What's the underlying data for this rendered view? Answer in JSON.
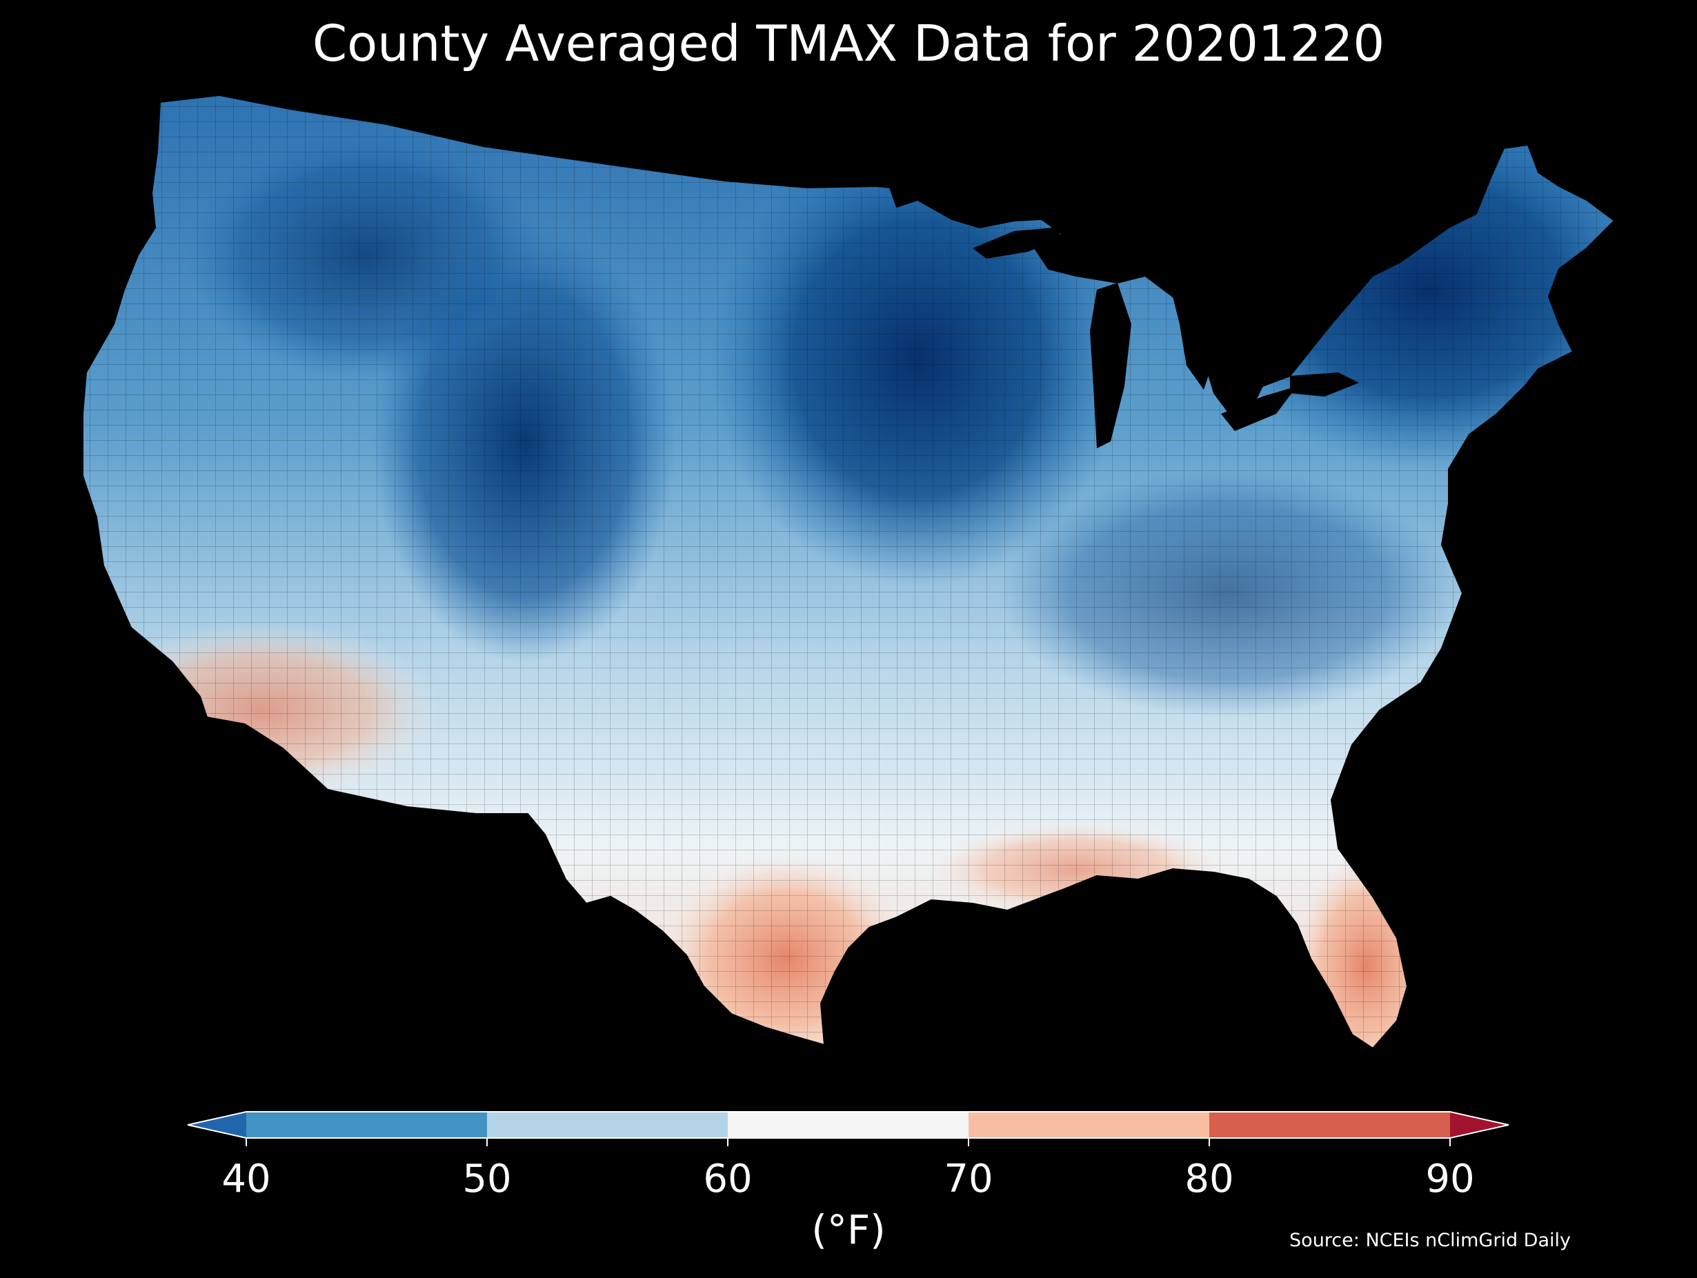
{
  "title": "County Averaged TMAX Data for 20201220",
  "colorbar": {
    "unit_label": "(°F)",
    "ticks": [
      "40",
      "50",
      "60",
      "70",
      "80",
      "90"
    ],
    "bins": [
      {
        "from": null,
        "to": 40,
        "color": "#2166ac"
      },
      {
        "from": 40,
        "to": 50,
        "color": "#4393c3"
      },
      {
        "from": 50,
        "to": 60,
        "color": "#b3d4e7"
      },
      {
        "from": 60,
        "to": 70,
        "color": "#f5f5f5"
      },
      {
        "from": 70,
        "to": 80,
        "color": "#f6bda1"
      },
      {
        "from": 80,
        "to": 90,
        "color": "#d6604d"
      },
      {
        "from": 90,
        "to": null,
        "color": "#a1132e"
      }
    ],
    "extend": "both"
  },
  "source": "Source: NCEIs nClimGrid Daily",
  "map": {
    "region": "Contiguous United States",
    "background": "#000000",
    "coldest_color": "#0b3a6e",
    "warmest_color": "#e07a5f"
  }
}
